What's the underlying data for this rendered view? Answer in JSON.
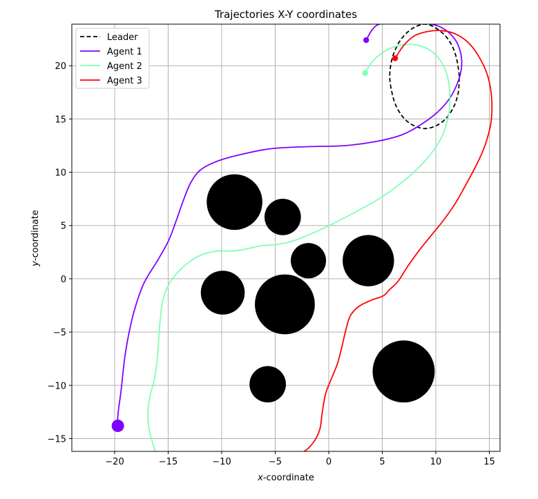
{
  "chart_data": {
    "type": "line",
    "title": "Trajectories X-Y coordinates",
    "xlabel_var": "x",
    "xlabel_rest": "-coordinate",
    "ylabel_var": "y",
    "ylabel_rest": "-coordinate",
    "xlim": [
      -24,
      16
    ],
    "ylim": [
      -16.2,
      23.9
    ],
    "xticks": [
      -20,
      -15,
      -10,
      -5,
      0,
      5,
      10,
      15
    ],
    "yticks": [
      -15,
      -10,
      -5,
      0,
      5,
      10,
      15,
      20
    ],
    "grid": true,
    "legend_position": "top-left",
    "obstacles": [
      {
        "x": -8.8,
        "y": 7.2,
        "r": 2.6
      },
      {
        "x": -4.3,
        "y": 5.8,
        "r": 1.7
      },
      {
        "x": -1.9,
        "y": 1.7,
        "r": 1.65
      },
      {
        "x": 3.7,
        "y": 1.7,
        "r": 2.4
      },
      {
        "x": -9.9,
        "y": -1.3,
        "r": 2.05
      },
      {
        "x": -4.1,
        "y": -2.4,
        "r": 2.8
      },
      {
        "x": -5.7,
        "y": -9.9,
        "r": 1.7
      },
      {
        "x": 7.0,
        "y": -8.7,
        "r": 2.9
      }
    ],
    "series": [
      {
        "name": "Leader",
        "color": "#000000",
        "style": "dashed",
        "x": [
          12.2,
          12.0,
          11.6,
          10.9,
          9.9,
          9.0,
          8.0,
          7.1,
          6.4,
          5.9,
          5.7,
          5.9,
          6.3,
          7.0,
          7.9,
          9.0,
          10.1,
          11.0,
          11.7,
          12.1,
          12.2
        ],
        "y": [
          19.0,
          20.4,
          21.7,
          22.8,
          23.6,
          23.9,
          23.6,
          22.9,
          21.9,
          20.6,
          19.0,
          17.5,
          16.2,
          15.1,
          14.4,
          14.1,
          14.4,
          15.1,
          16.2,
          17.5,
          19.0
        ]
      },
      {
        "name": "Agent 1",
        "color": "#8000ff",
        "style": "solid",
        "start_marker": {
          "x": 3.5,
          "y": 22.4
        },
        "end_marker": {
          "x": -19.7,
          "y": -13.8
        },
        "x": [
          3.5,
          4.0,
          4.5,
          5.2,
          6.2,
          7.5,
          9.0,
          10.5,
          11.7,
          12.3,
          12.4,
          12.0,
          11.2,
          10.0,
          8.5,
          6.8,
          4.5,
          1.5,
          -2.0,
          -5.5,
          -8.5,
          -10.5,
          -12.0,
          -12.9,
          -13.6,
          -14.3,
          -15.0,
          -16.0,
          -17.3,
          -18.3,
          -19.0,
          -19.4,
          -19.7,
          -19.7
        ],
        "y": [
          22.4,
          23.3,
          23.8,
          24.0,
          24.0,
          24.0,
          24.0,
          23.6,
          22.6,
          21.3,
          19.8,
          18.3,
          16.8,
          15.5,
          14.4,
          13.5,
          12.9,
          12.5,
          12.4,
          12.2,
          11.6,
          11.0,
          10.2,
          9.0,
          7.3,
          5.3,
          3.5,
          1.7,
          -0.5,
          -3.5,
          -7.0,
          -10.5,
          -12.8,
          -13.8
        ]
      },
      {
        "name": "Agent 2",
        "color": "#80ffb4",
        "style": "solid",
        "start_marker": {
          "x": 3.4,
          "y": 19.3
        },
        "x": [
          3.4,
          4.0,
          5.0,
          6.2,
          7.6,
          9.0,
          10.2,
          11.0,
          11.3,
          11.2,
          10.5,
          9.2,
          7.5,
          5.0,
          2.0,
          -1.0,
          -3.5,
          -5.0,
          -6.3,
          -7.3,
          -8.2,
          -9.3,
          -10.5,
          -12.0,
          -13.5,
          -14.8,
          -15.5,
          -15.8,
          -16.0,
          -16.3,
          -16.7,
          -16.9,
          -16.7,
          -16.2
        ],
        "y": [
          19.3,
          20.3,
          21.2,
          21.8,
          22.0,
          21.7,
          20.8,
          19.3,
          17.5,
          15.4,
          13.2,
          11.3,
          9.6,
          7.7,
          6.0,
          4.5,
          3.5,
          3.2,
          3.1,
          2.9,
          2.7,
          2.6,
          2.6,
          2.2,
          1.2,
          -0.3,
          -2.0,
          -4.5,
          -7.3,
          -9.5,
          -11.0,
          -12.7,
          -14.5,
          -16.2
        ]
      },
      {
        "name": "Agent 3",
        "color": "#ff0000",
        "style": "solid",
        "start_marker": {
          "x": 6.2,
          "y": 20.7
        },
        "x": [
          6.2,
          7.0,
          8.0,
          9.2,
          10.5,
          11.8,
          13.0,
          14.0,
          14.8,
          15.2,
          15.2,
          14.9,
          14.4,
          13.7,
          12.9,
          11.9,
          10.8,
          9.6,
          8.4,
          7.4,
          6.5,
          5.7,
          5.1,
          4.0,
          2.8,
          2.0,
          1.6,
          1.2,
          0.8,
          0.2,
          -0.3,
          -0.6,
          -0.8,
          -1.2,
          -1.8,
          -2.3
        ],
        "y": [
          20.7,
          21.9,
          22.8,
          23.2,
          23.3,
          23.0,
          22.2,
          20.9,
          19.2,
          17.2,
          15.0,
          13.5,
          12.0,
          10.5,
          9.0,
          7.2,
          5.6,
          4.1,
          2.6,
          1.2,
          -0.2,
          -1.0,
          -1.6,
          -2.0,
          -2.6,
          -3.5,
          -4.8,
          -6.5,
          -8.0,
          -9.5,
          -10.8,
          -12.5,
          -14.0,
          -15.0,
          -15.8,
          -16.2
        ]
      }
    ]
  }
}
